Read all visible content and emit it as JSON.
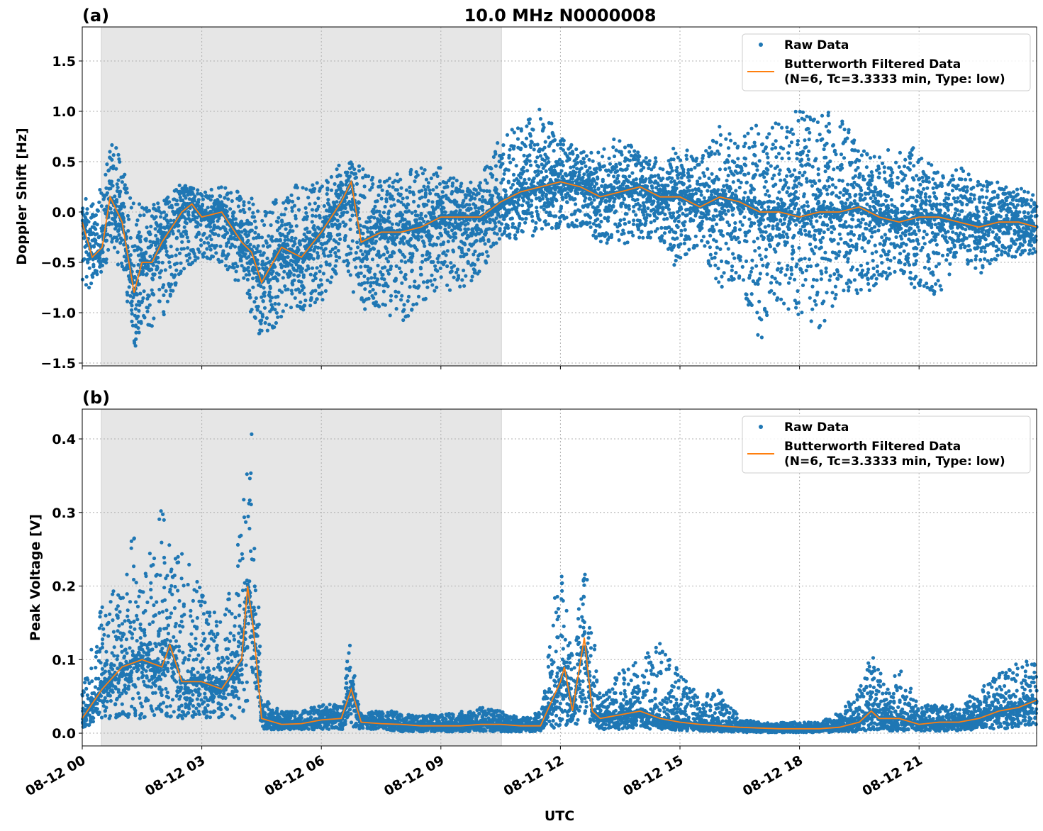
{
  "chart_data": [
    {
      "type": "scatter",
      "panel_label": "(a)",
      "title": "10.0 MHz N0000008",
      "xlabel": "",
      "ylabel": "Doppler Shift [Hz]",
      "xlim_hours_utc": [
        0,
        23.95
      ],
      "ylim": [
        -1.528,
        1.838
      ],
      "yticks": [
        -1.5,
        -1.0,
        -0.5,
        0.0,
        0.5,
        1.0,
        1.5
      ],
      "ytick_labels": [
        "−1.5",
        "−1.0",
        "−0.5",
        "0.0",
        "0.5",
        "1.0",
        "1.5"
      ],
      "xticks_hours": [
        0,
        3,
        6,
        9,
        12,
        15,
        18,
        21
      ],
      "grid": true,
      "shaded_interval_hours": [
        0.48,
        10.52
      ],
      "legend_position": "top-right",
      "legend": [
        "Raw Data",
        "Butterworth Filtered Data",
        "(N=6, Tc=3.3333 min, Type: low)"
      ],
      "colors": {
        "raw": "#1f77b4",
        "filtered": "#ff7f0e",
        "shade": "#e6e6e6"
      },
      "series": [
        {
          "name": "Butterworth Filtered Data",
          "kind": "line",
          "points": [
            [
              0,
              -0.1
            ],
            [
              0.25,
              -0.45
            ],
            [
              0.5,
              -0.35
            ],
            [
              0.7,
              0.15
            ],
            [
              1,
              -0.1
            ],
            [
              1.3,
              -0.8
            ],
            [
              1.5,
              -0.5
            ],
            [
              1.75,
              -0.5
            ],
            [
              2,
              -0.3
            ],
            [
              2.5,
              0.0
            ],
            [
              2.75,
              0.08
            ],
            [
              3,
              -0.05
            ],
            [
              3.5,
              0.0
            ],
            [
              4,
              -0.3
            ],
            [
              4.25,
              -0.4
            ],
            [
              4.5,
              -0.7
            ],
            [
              5,
              -0.35
            ],
            [
              5.5,
              -0.45
            ],
            [
              6,
              -0.2
            ],
            [
              6.5,
              0.1
            ],
            [
              6.75,
              0.3
            ],
            [
              7,
              -0.3
            ],
            [
              7.5,
              -0.2
            ],
            [
              8,
              -0.2
            ],
            [
              8.5,
              -0.15
            ],
            [
              9,
              -0.05
            ],
            [
              9.5,
              -0.05
            ],
            [
              10,
              -0.05
            ],
            [
              10.5,
              0.1
            ],
            [
              11,
              0.2
            ],
            [
              11.5,
              0.25
            ],
            [
              12,
              0.3
            ],
            [
              12.5,
              0.25
            ],
            [
              13,
              0.15
            ],
            [
              13.5,
              0.2
            ],
            [
              14,
              0.25
            ],
            [
              14.5,
              0.15
            ],
            [
              15,
              0.15
            ],
            [
              15.5,
              0.05
            ],
            [
              16,
              0.15
            ],
            [
              16.5,
              0.1
            ],
            [
              17,
              0.0
            ],
            [
              17.5,
              0.0
            ],
            [
              18,
              -0.05
            ],
            [
              18.5,
              0.0
            ],
            [
              19,
              0.0
            ],
            [
              19.5,
              0.05
            ],
            [
              20,
              -0.05
            ],
            [
              20.5,
              -0.1
            ],
            [
              21,
              -0.05
            ],
            [
              21.5,
              -0.05
            ],
            [
              22,
              -0.1
            ],
            [
              22.5,
              -0.15
            ],
            [
              23,
              -0.1
            ],
            [
              23.5,
              -0.1
            ],
            [
              23.95,
              -0.15
            ]
          ]
        },
        {
          "name": "Raw Data",
          "kind": "scatter_envelope",
          "columns": [
            "hour",
            "min",
            "max"
          ],
          "points": [
            [
              0,
              -0.85,
              0.1
            ],
            [
              0.5,
              -0.6,
              0.3
            ],
            [
              0.7,
              -0.4,
              0.87
            ],
            [
              1,
              -0.6,
              0.5
            ],
            [
              1.3,
              -1.37,
              0.1
            ],
            [
              1.5,
              -1.2,
              0.1
            ],
            [
              2,
              -1.1,
              0.1
            ],
            [
              2.5,
              -0.6,
              0.3
            ],
            [
              3,
              -0.5,
              0.2
            ],
            [
              3.5,
              -0.5,
              0.25
            ],
            [
              4,
              -0.8,
              0.2
            ],
            [
              4.5,
              -1.3,
              0.1
            ],
            [
              5,
              -1.1,
              0.2
            ],
            [
              5.5,
              -1.0,
              0.3
            ],
            [
              6,
              -0.9,
              0.3
            ],
            [
              6.5,
              -0.6,
              0.5
            ],
            [
              7,
              -1.0,
              0.5
            ],
            [
              7.5,
              -1.0,
              0.3
            ],
            [
              8,
              -1.13,
              0.4
            ],
            [
              8.5,
              -0.9,
              0.45
            ],
            [
              9,
              -0.8,
              0.45
            ],
            [
              9.5,
              -0.8,
              0.3
            ],
            [
              10,
              -0.6,
              0.4
            ],
            [
              10.5,
              -0.25,
              0.75
            ],
            [
              11,
              -0.3,
              0.9
            ],
            [
              11.5,
              -0.2,
              1.1
            ],
            [
              12,
              -0.15,
              0.75
            ],
            [
              12.5,
              -0.15,
              0.6
            ],
            [
              13,
              -0.3,
              0.6
            ],
            [
              13.5,
              -0.35,
              0.8
            ],
            [
              14,
              -0.25,
              0.6
            ],
            [
              14.5,
              -0.3,
              0.55
            ],
            [
              15,
              -0.65,
              0.68
            ],
            [
              15.5,
              -0.3,
              0.5
            ],
            [
              16,
              -0.8,
              0.9
            ],
            [
              16.5,
              -0.7,
              0.7
            ],
            [
              17,
              -1.32,
              0.95
            ],
            [
              17.5,
              -0.9,
              0.9
            ],
            [
              18,
              -1.05,
              1.03
            ],
            [
              18.5,
              -1.2,
              0.95
            ],
            [
              19,
              -0.8,
              1.04
            ],
            [
              19.5,
              -0.9,
              0.6
            ],
            [
              20,
              -0.7,
              0.65
            ],
            [
              20.5,
              -0.6,
              0.6
            ],
            [
              21,
              -0.8,
              0.67
            ],
            [
              21.5,
              -0.85,
              0.4
            ],
            [
              22,
              -0.5,
              0.45
            ],
            [
              22.5,
              -0.63,
              0.35
            ],
            [
              23,
              -0.45,
              0.3
            ],
            [
              23.5,
              -0.45,
              0.25
            ],
            [
              23.95,
              -0.4,
              0.2
            ]
          ]
        }
      ]
    },
    {
      "type": "scatter",
      "panel_label": "(b)",
      "title": "",
      "xlabel": "UTC",
      "ylabel": "Peak Voltage [V]",
      "xlim_hours_utc": [
        0,
        23.95
      ],
      "ylim": [
        -0.0173,
        0.4405
      ],
      "yticks": [
        0.0,
        0.1,
        0.2,
        0.3,
        0.4
      ],
      "ytick_labels": [
        "0.0",
        "0.1",
        "0.2",
        "0.3",
        "0.4"
      ],
      "xticks_hours": [
        0,
        3,
        6,
        9,
        12,
        15,
        18,
        21
      ],
      "xtick_labels": [
        "08-12 00",
        "08-12 03",
        "08-12 06",
        "08-12 09",
        "08-12 12",
        "08-12 15",
        "08-12 18",
        "08-12 21"
      ],
      "grid": true,
      "shaded_interval_hours": [
        0.48,
        10.52
      ],
      "legend_position": "top-right",
      "legend": [
        "Raw Data",
        "Butterworth Filtered Data",
        "(N=6, Tc=3.3333 min, Type: low)"
      ],
      "series": [
        {
          "name": "Butterworth Filtered Data",
          "kind": "line",
          "points": [
            [
              0,
              0.02
            ],
            [
              0.5,
              0.06
            ],
            [
              1,
              0.09
            ],
            [
              1.5,
              0.1
            ],
            [
              2,
              0.09
            ],
            [
              2.2,
              0.12
            ],
            [
              2.5,
              0.07
            ],
            [
              3,
              0.07
            ],
            [
              3.5,
              0.06
            ],
            [
              4,
              0.1
            ],
            [
              4.15,
              0.2
            ],
            [
              4.3,
              0.14
            ],
            [
              4.5,
              0.02
            ],
            [
              5,
              0.012
            ],
            [
              5.5,
              0.013
            ],
            [
              6,
              0.018
            ],
            [
              6.5,
              0.02
            ],
            [
              6.75,
              0.06
            ],
            [
              7,
              0.015
            ],
            [
              7.5,
              0.013
            ],
            [
              8,
              0.012
            ],
            [
              8.5,
              0.01
            ],
            [
              9,
              0.01
            ],
            [
              9.5,
              0.01
            ],
            [
              10,
              0.012
            ],
            [
              10.5,
              0.012
            ],
            [
              11,
              0.01
            ],
            [
              11.5,
              0.01
            ],
            [
              12,
              0.07
            ],
            [
              12.1,
              0.09
            ],
            [
              12.3,
              0.03
            ],
            [
              12.6,
              0.13
            ],
            [
              12.8,
              0.03
            ],
            [
              13,
              0.02
            ],
            [
              13.5,
              0.025
            ],
            [
              14,
              0.03
            ],
            [
              14.5,
              0.02
            ],
            [
              15,
              0.015
            ],
            [
              15.5,
              0.012
            ],
            [
              16,
              0.01
            ],
            [
              16.5,
              0.008
            ],
            [
              17,
              0.007
            ],
            [
              17.5,
              0.006
            ],
            [
              18,
              0.006
            ],
            [
              18.5,
              0.006
            ],
            [
              19,
              0.008
            ],
            [
              19.5,
              0.015
            ],
            [
              19.8,
              0.03
            ],
            [
              20,
              0.02
            ],
            [
              20.5,
              0.02
            ],
            [
              21,
              0.012
            ],
            [
              21.5,
              0.015
            ],
            [
              22,
              0.015
            ],
            [
              22.5,
              0.02
            ],
            [
              23,
              0.03
            ],
            [
              23.5,
              0.035
            ],
            [
              23.95,
              0.045
            ]
          ]
        },
        {
          "name": "Raw Data",
          "kind": "scatter_envelope",
          "columns": [
            "hour",
            "min",
            "max"
          ],
          "points": [
            [
              0,
              0.005,
              0.06
            ],
            [
              0.5,
              0.02,
              0.18
            ],
            [
              1,
              0.02,
              0.21
            ],
            [
              1.3,
              0.02,
              0.28
            ],
            [
              1.5,
              0.02,
              0.2
            ],
            [
              2,
              0.02,
              0.32
            ],
            [
              2.5,
              0.02,
              0.25
            ],
            [
              3,
              0.02,
              0.2
            ],
            [
              3.5,
              0.02,
              0.15
            ],
            [
              4,
              0.02,
              0.3
            ],
            [
              4.25,
              0.05,
              0.42
            ],
            [
              4.5,
              0.005,
              0.05
            ],
            [
              5,
              0.005,
              0.03
            ],
            [
              5.5,
              0.005,
              0.03
            ],
            [
              6,
              0.005,
              0.04
            ],
            [
              6.5,
              0.005,
              0.04
            ],
            [
              6.7,
              0.01,
              0.13
            ],
            [
              7,
              0.005,
              0.03
            ],
            [
              7.5,
              0.005,
              0.03
            ],
            [
              8,
              0.002,
              0.03
            ],
            [
              8.5,
              0.002,
              0.025
            ],
            [
              9,
              0.002,
              0.025
            ],
            [
              9.5,
              0.002,
              0.03
            ],
            [
              10,
              0.002,
              0.035
            ],
            [
              10.5,
              0.002,
              0.03
            ],
            [
              11,
              0.002,
              0.02
            ],
            [
              11.5,
              0.002,
              0.03
            ],
            [
              12,
              0.01,
              0.25
            ],
            [
              12.3,
              0.005,
              0.1
            ],
            [
              12.6,
              0.02,
              0.24
            ],
            [
              13,
              0.005,
              0.05
            ],
            [
              13.5,
              0.005,
              0.09
            ],
            [
              14,
              0.005,
              0.1
            ],
            [
              14.5,
              0.005,
              0.13
            ],
            [
              15,
              0.003,
              0.08
            ],
            [
              15.5,
              0.003,
              0.05
            ],
            [
              16,
              0.002,
              0.06
            ],
            [
              16.5,
              0.001,
              0.02
            ],
            [
              17,
              0.001,
              0.015
            ],
            [
              17.5,
              0.001,
              0.015
            ],
            [
              18,
              0.001,
              0.015
            ],
            [
              18.5,
              0.001,
              0.015
            ],
            [
              19,
              0.002,
              0.03
            ],
            [
              19.5,
              0.002,
              0.06
            ],
            [
              19.8,
              0.005,
              0.11
            ],
            [
              20.2,
              0.003,
              0.06
            ],
            [
              20.5,
              0.003,
              0.09
            ],
            [
              21,
              0.003,
              0.04
            ],
            [
              21.5,
              0.003,
              0.04
            ],
            [
              22,
              0.003,
              0.04
            ],
            [
              22.5,
              0.005,
              0.06
            ],
            [
              23,
              0.005,
              0.08
            ],
            [
              23.5,
              0.008,
              0.1
            ],
            [
              23.95,
              0.01,
              0.1
            ]
          ]
        }
      ]
    }
  ]
}
